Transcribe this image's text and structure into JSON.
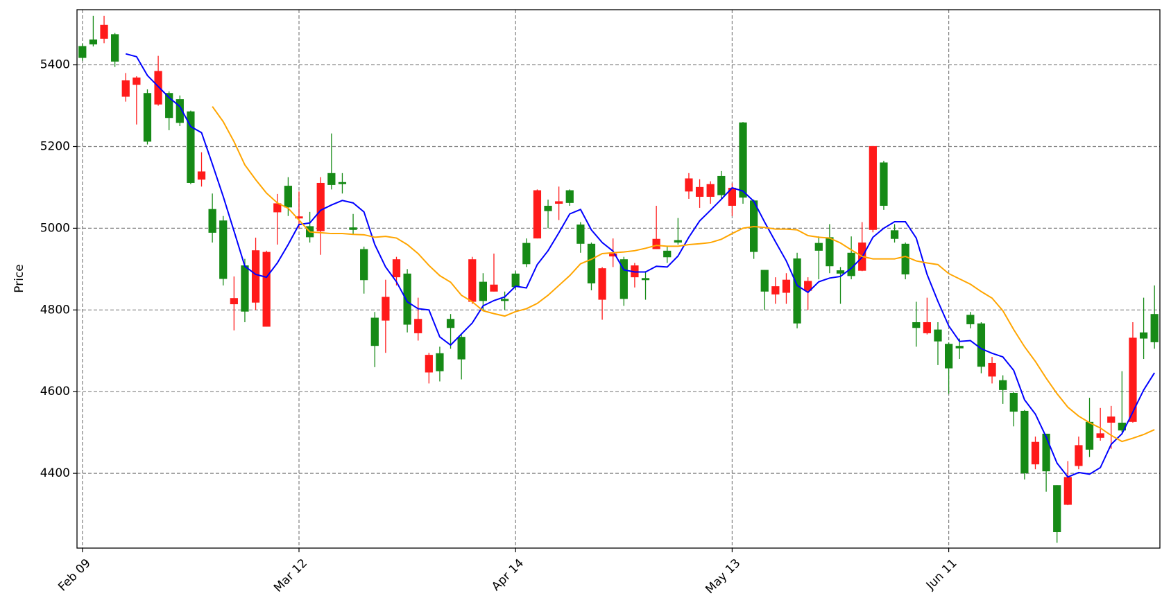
{
  "chart_data": {
    "type": "candlestick",
    "ylabel": "Price",
    "categories": [
      "Feb 09",
      null,
      null,
      null,
      null,
      null,
      null,
      null,
      null,
      null,
      null,
      null,
      null,
      null,
      null,
      null,
      null,
      null,
      null,
      null,
      "Mar 12",
      null,
      null,
      null,
      null,
      null,
      null,
      null,
      null,
      null,
      null,
      null,
      null,
      null,
      null,
      null,
      null,
      null,
      null,
      null,
      "Apr 14",
      null,
      null,
      null,
      null,
      null,
      null,
      null,
      null,
      null,
      null,
      null,
      null,
      null,
      null,
      null,
      null,
      null,
      null,
      null,
      "May 13",
      null,
      null,
      null,
      null,
      null,
      null,
      null,
      null,
      null,
      null,
      null,
      null,
      null,
      null,
      null,
      null,
      null,
      null,
      null,
      "Jun 11",
      null,
      null,
      null,
      null,
      null,
      null,
      null,
      null,
      null,
      null,
      null,
      null,
      null,
      null,
      null,
      null,
      null,
      null,
      null
    ],
    "open": [
      5417,
      5450,
      5498,
      5408,
      5362,
      5369,
      5212,
      5385,
      5270,
      5258,
      5111,
      5139,
      4989,
      4876,
      4829,
      4796,
      4946,
      4942,
      5061,
      5051,
      5029,
      4978,
      5111,
      5106,
      5108,
      4996,
      4873,
      4712,
      4832,
      4924,
      4764,
      4778,
      4690,
      4650,
      4756,
      4679,
      4924,
      4822,
      4862,
      4822,
      4856,
      4912,
      5093,
      5042,
      5066,
      5062,
      4962,
      4865,
      4902,
      4938,
      4827,
      4909,
      4873,
      4974,
      4929,
      4965,
      5122,
      5101,
      5108,
      5081,
      5099,
      5075,
      4942,
      4845,
      4858,
      4874,
      4767,
      4871,
      4945,
      4907,
      4889,
      4883,
      4965,
      5201,
      5055,
      4974,
      4887,
      4756,
      4770,
      4723,
      4657,
      4706,
      4765,
      4661,
      4670,
      4604,
      4551,
      4400,
      4477,
      4405,
      4256,
      4391,
      4469,
      4458,
      4498,
      4539,
      4505,
      4732,
      4730,
      4721
    ],
    "high": [
      5452,
      5520,
      5520,
      5478,
      5380,
      5372,
      5340,
      5422,
      5335,
      5325,
      5288,
      5186,
      5085,
      5030,
      4882,
      4925,
      4977,
      4945,
      5084,
      5125,
      5090,
      5040,
      5125,
      5232,
      5135,
      5035,
      4955,
      4795,
      4874,
      4930,
      4900,
      4830,
      4695,
      4710,
      4790,
      4740,
      4930,
      4890,
      4938,
      4845,
      4895,
      4975,
      5095,
      5070,
      5102,
      5095,
      5015,
      4965,
      4905,
      4975,
      4930,
      4915,
      4895,
      5055,
      4955,
      5025,
      5135,
      5120,
      5115,
      5140,
      5110,
      5260,
      5070,
      4898,
      4880,
      4890,
      4940,
      4880,
      4980,
      5010,
      4905,
      4980,
      5015,
      5201,
      5165,
      5010,
      4965,
      4820,
      4830,
      4770,
      4720,
      4730,
      4795,
      4770,
      4685,
      4640,
      4600,
      4555,
      4490,
      4497,
      4371,
      4430,
      4490,
      4585,
      4560,
      4565,
      4650,
      4770,
      4830,
      4860
    ],
    "low": [
      5410,
      5445,
      5453,
      5395,
      5310,
      5254,
      5205,
      5300,
      5240,
      5250,
      5108,
      5102,
      4965,
      4860,
      4750,
      4770,
      4800,
      4759,
      4960,
      5030,
      5000,
      4965,
      4935,
      5095,
      5085,
      4985,
      4840,
      4660,
      4695,
      4860,
      4745,
      4725,
      4620,
      4625,
      4705,
      4630,
      4815,
      4800,
      4845,
      4800,
      4850,
      4905,
      4975,
      5000,
      5020,
      5055,
      4940,
      4848,
      4776,
      4905,
      4810,
      4855,
      4825,
      4949,
      4915,
      4960,
      5072,
      5050,
      5060,
      5070,
      5030,
      5060,
      4925,
      4800,
      4815,
      4815,
      4755,
      4800,
      4875,
      4890,
      4815,
      4875,
      4895,
      4990,
      5045,
      4965,
      4875,
      4710,
      4740,
      4665,
      4595,
      4680,
      4755,
      4645,
      4620,
      4570,
      4515,
      4385,
      4410,
      4355,
      4230,
      4322,
      4410,
      4440,
      4480,
      4460,
      4500,
      4524,
      4680,
      4705
    ],
    "close": [
      5446,
      5462,
      5464,
      5475,
      5322,
      5351,
      5331,
      5303,
      5331,
      5316,
      5286,
      5119,
      5047,
      5019,
      4814,
      4909,
      4818,
      4759,
      5039,
      5104,
      5024,
      5005,
      4993,
      5135,
      5113,
      5002,
      4949,
      4781,
      4774,
      4880,
      4889,
      4743,
      4647,
      4694,
      4778,
      4734,
      4820,
      4869,
      4845,
      4827,
      4889,
      4964,
      4975,
      5055,
      5060,
      5093,
      5009,
      4962,
      4825,
      4931,
      4924,
      4880,
      4878,
      4949,
      4945,
      4971,
      5090,
      5077,
      5077,
      5128,
      5055,
      5259,
      5068,
      4898,
      4838,
      4842,
      4926,
      4847,
      4964,
      4978,
      4897,
      4940,
      4896,
      4996,
      5161,
      4995,
      4962,
      4770,
      4743,
      4752,
      4717,
      4712,
      4788,
      4767,
      4637,
      4628,
      4597,
      4553,
      4422,
      4497,
      4371,
      4323,
      4418,
      4526,
      4487,
      4524,
      4524,
      4526,
      4745,
      4790
    ],
    "up_color": "#168a16",
    "down_color": "#ff1a1a",
    "series": [
      {
        "color": "#0000ff",
        "values": [
          null,
          null,
          null,
          null,
          5427,
          5420,
          5374,
          5347,
          5320,
          5298,
          5249,
          5234,
          5157,
          5078,
          4993,
          4907,
          4887,
          4880,
          4915,
          4960,
          5009,
          5013,
          5044,
          5057,
          5068,
          5062,
          5040,
          4960,
          4905,
          4869,
          4820,
          4803,
          4800,
          4734,
          4714,
          4741,
          4768,
          4810,
          4823,
          4832,
          4858,
          4854,
          4911,
          4945,
          4989,
          5035,
          5046,
          4996,
          4965,
          4944,
          4898,
          4893,
          4893,
          4907,
          4905,
          4932,
          4978,
          5018,
          5044,
          5071,
          5099,
          5091,
          5066,
          5015,
          4967,
          4920,
          4860,
          4843,
          4869,
          4878,
          4882,
          4902,
          4929,
          4978,
          5000,
          5016,
          5016,
          4976,
          4887,
          4821,
          4761,
          4723,
          4725,
          4705,
          4694,
          4685,
          4652,
          4580,
          4545,
          4489,
          4425,
          4391,
          4402,
          4398,
          4414,
          4471,
          4497,
          4550,
          4604,
          4646
        ]
      },
      {
        "color": "#ffa500",
        "values": [
          null,
          null,
          null,
          null,
          null,
          null,
          null,
          null,
          null,
          null,
          null,
          null,
          5298,
          5261,
          5212,
          5155,
          5119,
          5086,
          5062,
          5049,
          5020,
          4991,
          4989,
          4987,
          4987,
          4985,
          4984,
          4978,
          4980,
          4976,
          4960,
          4938,
          4909,
          4884,
          4868,
          4836,
          4820,
          4798,
          4791,
          4785,
          4796,
          4803,
          4816,
          4836,
          4860,
          4884,
          4913,
          4924,
          4938,
          4940,
          4942,
          4945,
          4951,
          4958,
          4956,
          4956,
          4960,
          4962,
          4965,
          4973,
          4987,
          5000,
          5004,
          5002,
          4998,
          4998,
          4996,
          4982,
          4978,
          4976,
          4964,
          4947,
          4931,
          4925,
          4925,
          4925,
          4931,
          4920,
          4915,
          4911,
          4889,
          4876,
          4863,
          4845,
          4829,
          4798,
          4752,
          4710,
          4674,
          4633,
          4595,
          4562,
          4540,
          4524,
          4511,
          4493,
          4478,
          4486,
          4495,
          4507
        ]
      }
    ],
    "ylim": [
      4217,
      5535
    ],
    "yticks": [
      4400,
      4600,
      4800,
      5000,
      5200,
      5400
    ],
    "grid": true
  }
}
